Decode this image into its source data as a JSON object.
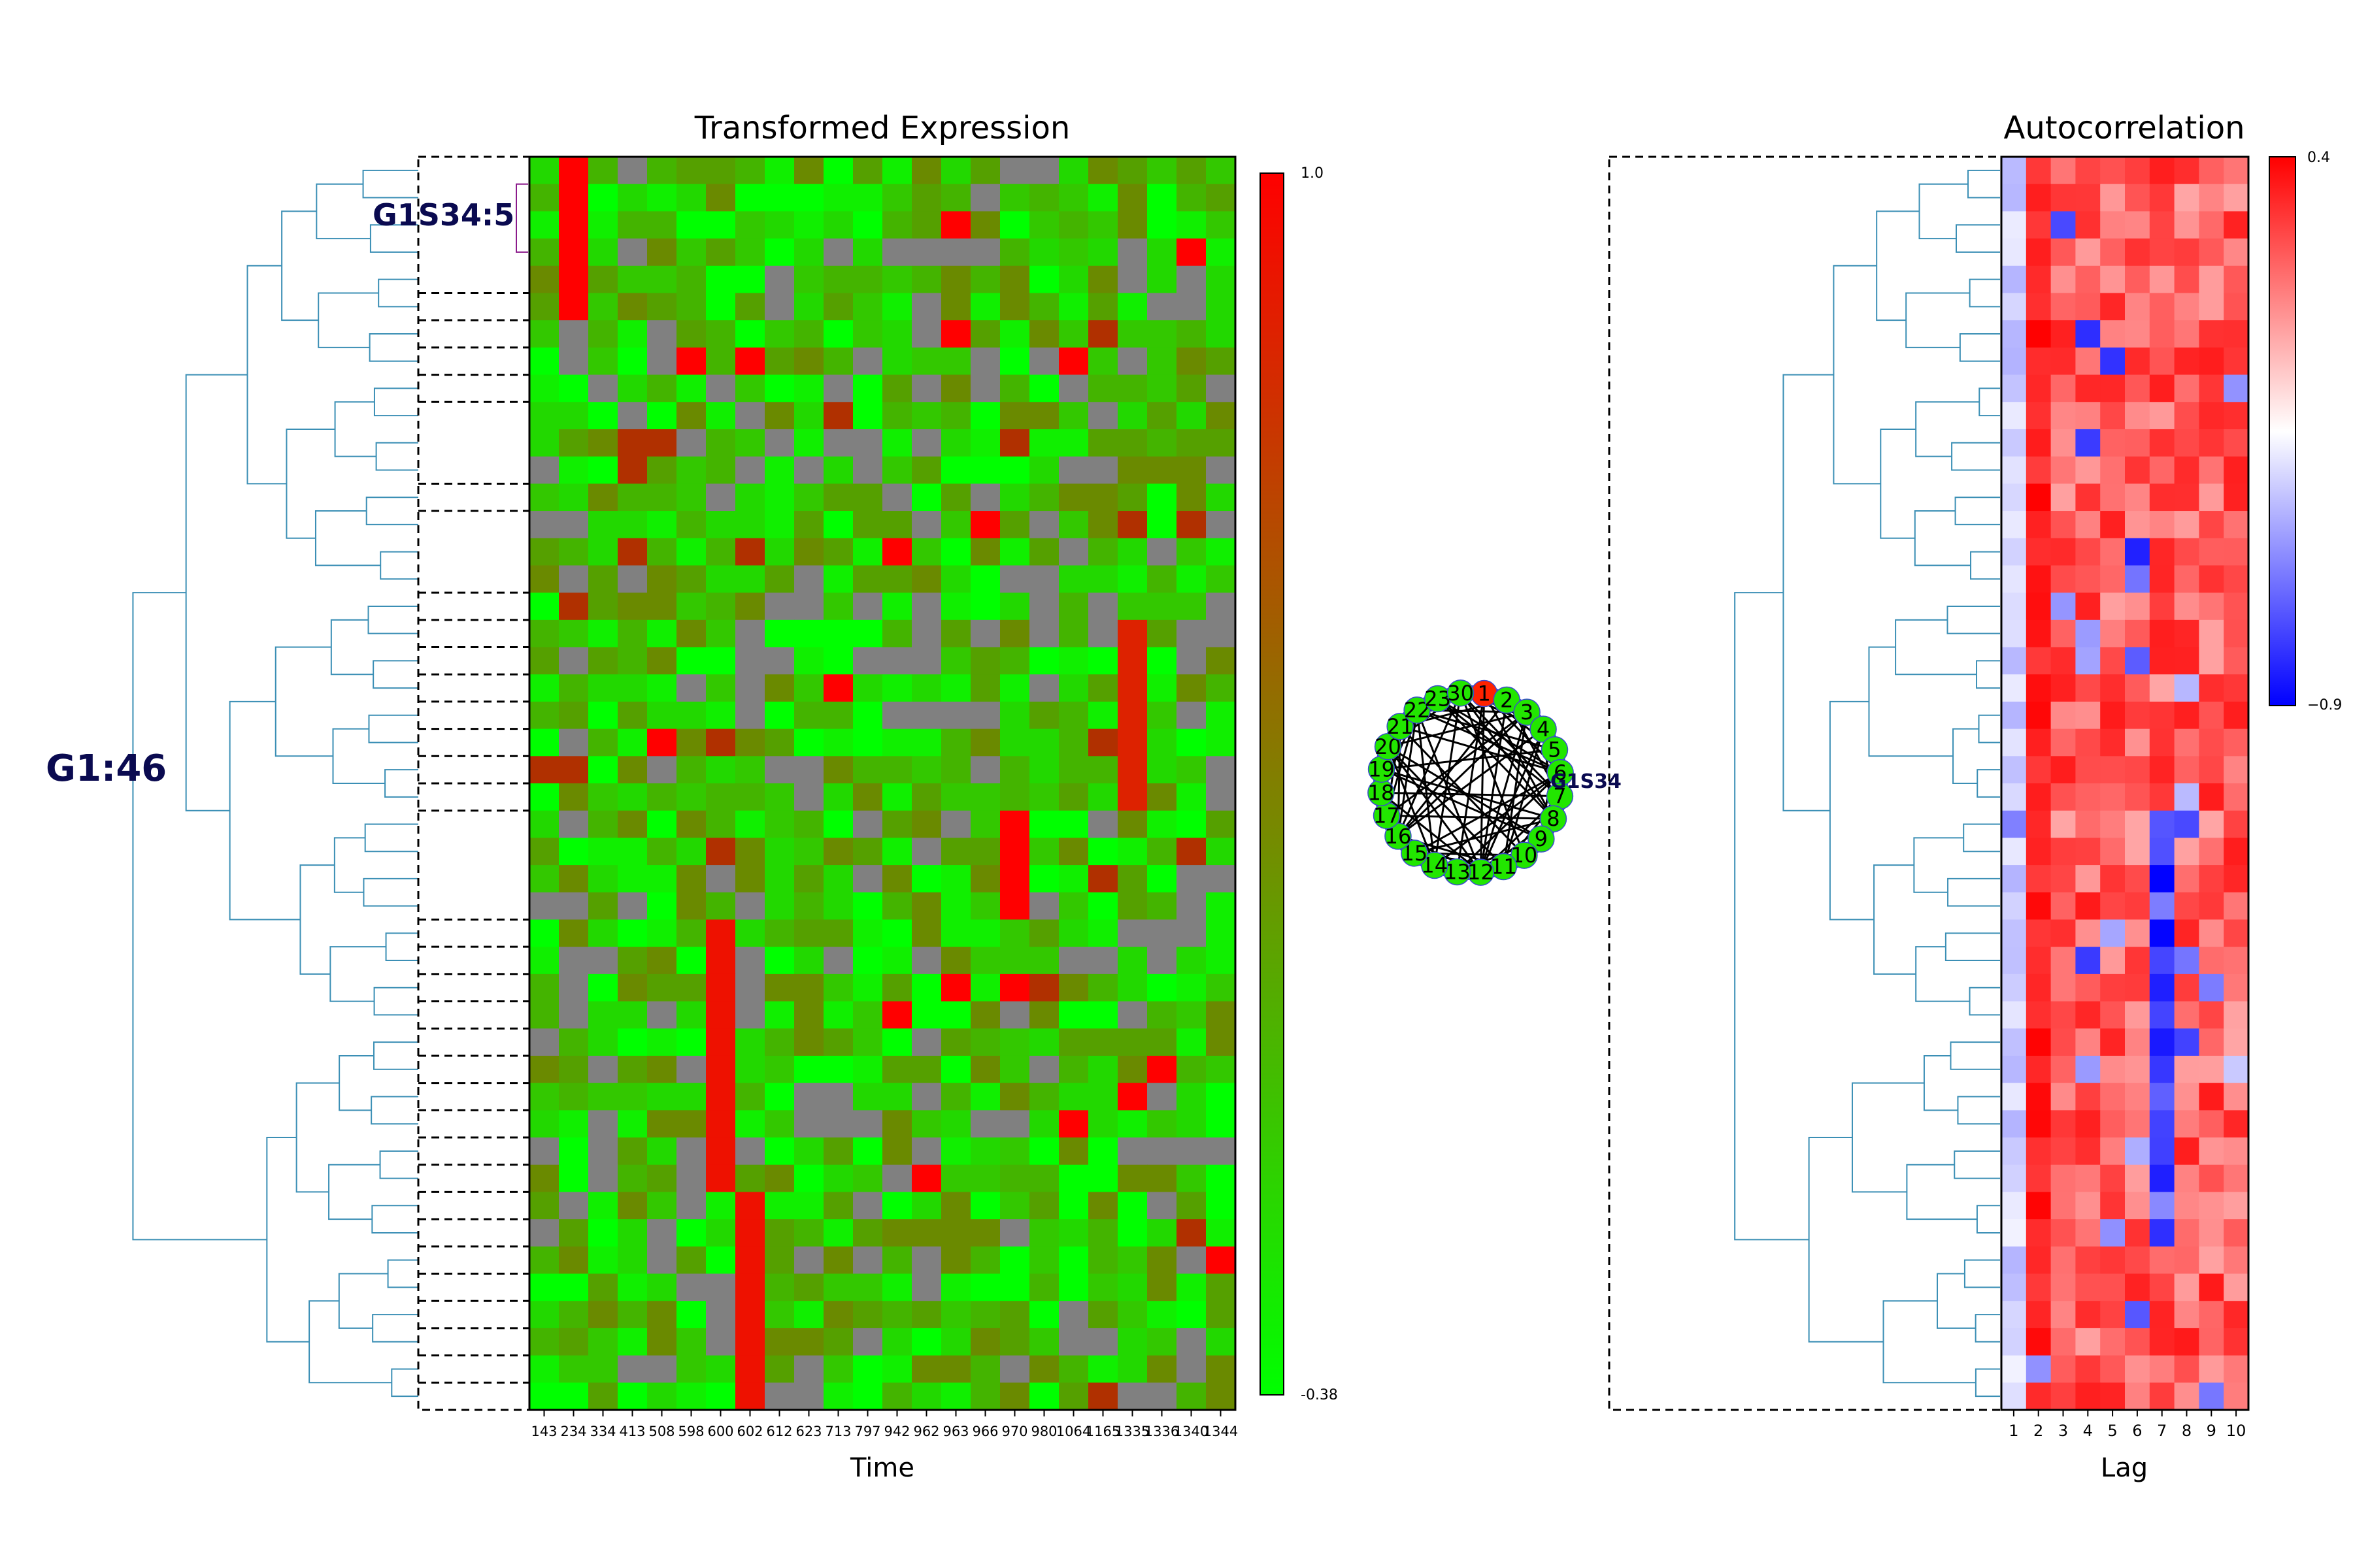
{
  "chart_data": [
    {
      "type": "heatmap",
      "title": "Transformed Expression",
      "xlabel": "Time",
      "x_tick_labels": [
        "143",
        "234",
        "334",
        "413",
        "508",
        "598",
        "600",
        "602",
        "612",
        "623",
        "713",
        "797",
        "942",
        "962",
        "963",
        "966",
        "970",
        "980",
        "1064",
        "1165",
        "1335",
        "1336",
        "1340",
        "1344"
      ],
      "colorbar": {
        "min_label": "-0.38",
        "max_label": "1.0",
        "colors": [
          "#00ff00",
          "#808000",
          "#ff0000"
        ]
      },
      "missing_color": "#808080",
      "rows": 46,
      "group_label": "G1:46",
      "subgroup_label": "G1S34:5"
    },
    {
      "type": "heatmap",
      "title": "Autocorrelation",
      "xlabel": "Lag",
      "x_tick_labels": [
        "1",
        "2",
        "3",
        "4",
        "5",
        "6",
        "7",
        "8",
        "9",
        "10"
      ],
      "colorbar": {
        "min_label": "−0.9",
        "max_label": "0.4",
        "colors": [
          "#0000ff",
          "#ffffff",
          "#ff0000"
        ]
      },
      "rows": 46
    },
    {
      "type": "network",
      "node_labels": [
        "1",
        "2",
        "3",
        "4",
        "5",
        "6",
        "7",
        "8",
        "9",
        "10",
        "11",
        "12",
        "13",
        "14",
        "15",
        "16",
        "17",
        "18",
        "19",
        "20",
        "21",
        "22",
        "23",
        "30"
      ],
      "highlight_node": "1",
      "label": "G1S34"
    }
  ],
  "colors": {
    "dendrogram": "#3b8fb5",
    "subtree": "#8b1a8b",
    "annotation": "#0a0a50"
  }
}
